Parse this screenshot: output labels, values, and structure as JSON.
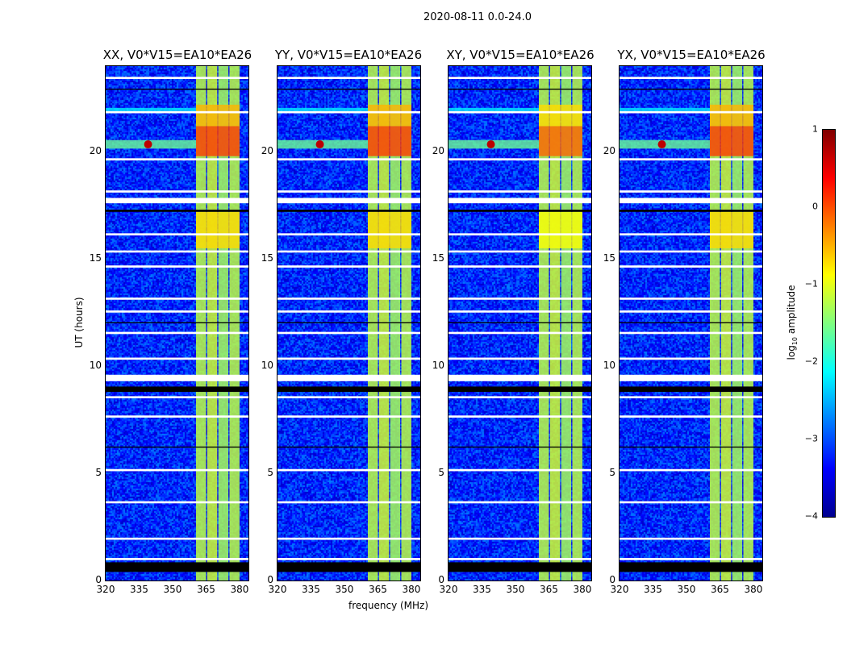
{
  "chart_data": {
    "type": "heatmap",
    "title": "2020-08-11 0.0-24.0",
    "xlabel": "frequency (MHz)",
    "ylabel": "UT (hours)",
    "xlim": [
      320,
      384
    ],
    "ylim": [
      0,
      24
    ],
    "xticks": [
      "320",
      "335",
      "350",
      "365",
      "380"
    ],
    "xtick_values": [
      320,
      335,
      350,
      365,
      380
    ],
    "yticks": [
      "0",
      "5",
      "10",
      "15",
      "20"
    ],
    "ytick_values": [
      0,
      5,
      10,
      15,
      20
    ],
    "colorbar": {
      "label_main": "log",
      "label_sub": "10",
      "label_rest": " amplitude",
      "range": [
        -4,
        1
      ],
      "ticks": [
        "1",
        "0",
        "−1",
        "−2",
        "−3",
        "−4"
      ],
      "tick_values": [
        1,
        0,
        -1,
        -2,
        -3,
        -4
      ],
      "colormap": "jet"
    },
    "panels": [
      {
        "title": "XX, V0*V15=EA10*EA26"
      },
      {
        "title": "YY, V0*V15=EA10*EA26"
      },
      {
        "title": "XY, V0*V15=EA10*EA26"
      },
      {
        "title": "YX, V0*V15=EA10*EA26"
      }
    ],
    "background_level": -3.2,
    "rfi_bands": [
      {
        "f": [
          360.5,
          365
        ],
        "t": [
          0,
          24
        ],
        "level": -1.2
      },
      {
        "f": [
          365.5,
          370
        ],
        "t": [
          0,
          24
        ],
        "level": -1.1
      },
      {
        "f": [
          370.5,
          375
        ],
        "t": [
          0,
          24
        ],
        "level": -1.3
      },
      {
        "f": [
          375.5,
          380
        ],
        "t": [
          0,
          24
        ],
        "level": -1.2
      }
    ],
    "hot_regions": [
      {
        "f": [
          360.5,
          380
        ],
        "t": [
          19.8,
          21.2
        ],
        "level": 0.1
      },
      {
        "f": [
          360.5,
          380
        ],
        "t": [
          21.2,
          22.2
        ],
        "level": -0.5
      },
      {
        "f": [
          360.5,
          380
        ],
        "t": [
          15.5,
          17.2
        ],
        "level": -0.7
      }
    ],
    "rfi_lines": [
      {
        "f": [
          320,
          360.5
        ],
        "t": [
          20.15,
          20.55
        ],
        "level": -1.6
      },
      {
        "f": [
          320,
          360.5
        ],
        "t": [
          21.9,
          22.05
        ],
        "level": -2.2
      }
    ],
    "point_sources": [
      {
        "f": 339,
        "t": 20.35,
        "level": 0.7
      }
    ],
    "flagged_white": [
      [
        23.4,
        23.5
      ],
      [
        21.8,
        21.9
      ],
      [
        19.6,
        19.7
      ],
      [
        18.1,
        18.2
      ],
      [
        17.6,
        17.85
      ],
      [
        16.1,
        16.2
      ],
      [
        15.3,
        15.4
      ],
      [
        14.6,
        14.7
      ],
      [
        13.1,
        13.2
      ],
      [
        12.5,
        12.6
      ],
      [
        11.5,
        11.6
      ],
      [
        10.3,
        10.4
      ],
      [
        9.3,
        9.6
      ],
      [
        8.5,
        8.6
      ],
      [
        7.6,
        7.7
      ],
      [
        5.1,
        5.2
      ],
      [
        3.6,
        3.7
      ],
      [
        1.9,
        2.0
      ],
      [
        0.95,
        1.05
      ]
    ],
    "flagged_black": [
      [
        22.9,
        22.95
      ],
      [
        17.2,
        17.3
      ],
      [
        12.0,
        12.05
      ],
      [
        8.8,
        9.05
      ],
      [
        6.2,
        6.25
      ],
      [
        0.4,
        0.85
      ]
    ]
  }
}
